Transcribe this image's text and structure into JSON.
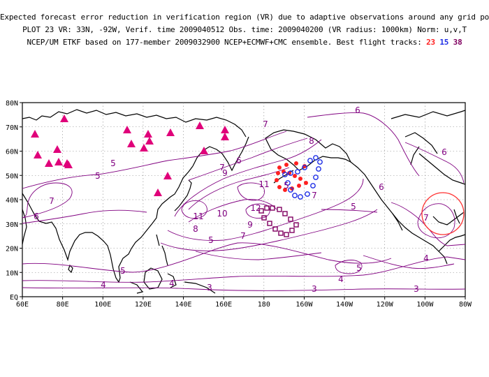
{
  "header": {
    "line1": "Expected forecast error reduction in verification region (VR) due to adaptive observations around any grid point.",
    "line2": "PLOT 23 VR: 33N, -92W, Verif. time 2009040512 Obs. time: 2009040200 (VR radius: 1000km) Norm: u,v,T",
    "line3_prefix": "NCEP/UM ETKF based on 177-member 2009032900 NCEP+ECMWF+CMC ensemble. Best flight tracks: ",
    "track_a": "23",
    "track_b": "15",
    "track_c": "38"
  },
  "map": {
    "lon_labels": [
      "60E",
      "80E",
      "100E",
      "120E",
      "140E",
      "160E",
      "180",
      "160W",
      "140W",
      "120W",
      "100W",
      "80W"
    ],
    "lat_labels": [
      "EQ",
      "10N",
      "20N",
      "30N",
      "40N",
      "50N",
      "60N",
      "70N",
      "80N"
    ],
    "contour_labels": [
      "3",
      "3",
      "3",
      "4",
      "4",
      "4",
      "4",
      "5",
      "5",
      "5",
      "5",
      "5",
      "5",
      "5",
      "6",
      "6",
      "6",
      "6",
      "6",
      "7",
      "7",
      "7",
      "7",
      "7",
      "7",
      "8",
      "8",
      "9",
      "9",
      "10",
      "11",
      "11",
      "12"
    ],
    "colors": {
      "contour": "#800080",
      "track_23": "#ff2020",
      "track_15": "#1e2ee6",
      "track_38": "#800060",
      "raob": "#e0007a",
      "vr_circle": "#ff3030"
    }
  }
}
